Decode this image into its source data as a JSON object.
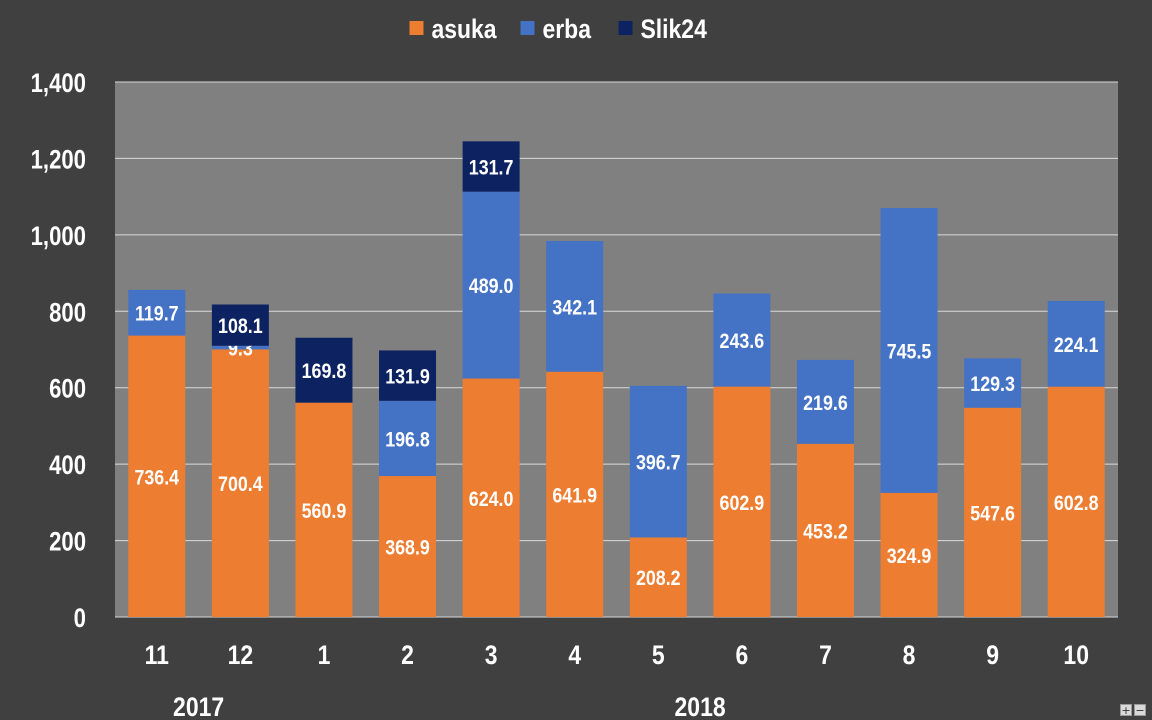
{
  "chart_data": {
    "type": "bar",
    "stacked": true,
    "categories": [
      "11",
      "12",
      "1",
      "2",
      "3",
      "4",
      "5",
      "6",
      "7",
      "8",
      "9",
      "10"
    ],
    "year_groups": [
      {
        "label": "2017",
        "categories": [
          "11",
          "12"
        ]
      },
      {
        "label": "2018",
        "categories": [
          "1",
          "2",
          "3",
          "4",
          "5",
          "6",
          "7",
          "8",
          "9",
          "10"
        ]
      }
    ],
    "series": [
      {
        "name": "asuka",
        "color": "#ED7D31",
        "values": [
          736.4,
          700.4,
          560.9,
          368.9,
          624.0,
          641.9,
          208.2,
          602.9,
          453.2,
          324.9,
          547.6,
          602.8
        ]
      },
      {
        "name": "erba",
        "color": "#4472C4",
        "values": [
          119.7,
          9.3,
          0,
          196.8,
          489.0,
          342.1,
          396.7,
          243.6,
          219.6,
          745.5,
          129.3,
          224.1
        ]
      },
      {
        "name": "Slik24",
        "color": "#0D2260",
        "values": [
          0,
          108.1,
          169.8,
          131.9,
          131.7,
          0,
          0,
          0,
          0,
          0,
          0,
          0
        ]
      }
    ],
    "ylim": [
      0,
      1400
    ],
    "yticks": [
      "0",
      "200",
      "400",
      "600",
      "800",
      "1,000",
      "1,200",
      "1,400"
    ],
    "ytick_values": [
      0,
      200,
      400,
      600,
      800,
      1000,
      1200,
      1400
    ],
    "grid": true,
    "legend_position": "top-center",
    "plot_background": "#808080",
    "page_background": "#404040"
  },
  "controls": {
    "zoom_in": "+",
    "zoom_out": "−"
  }
}
